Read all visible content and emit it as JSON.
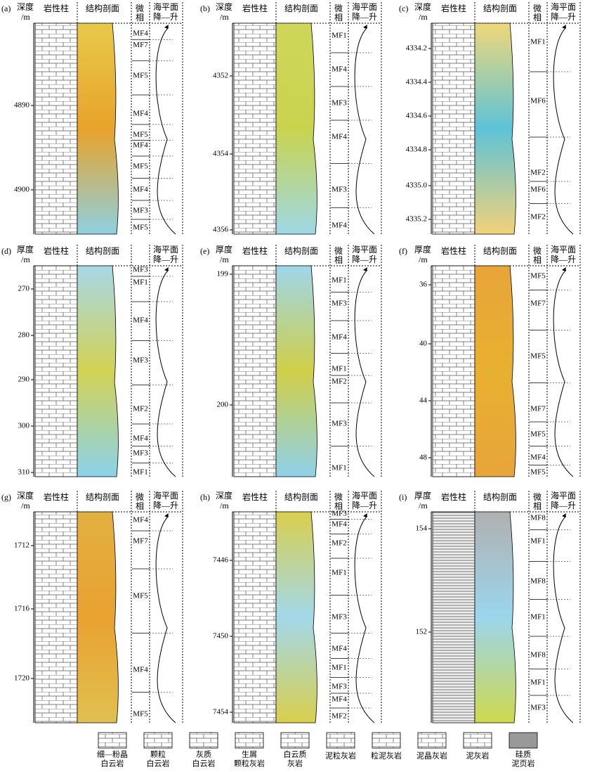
{
  "panels": [
    {
      "label": "(a)",
      "depth_header": [
        "深度",
        "/m"
      ],
      "headers": [
        "岩性柱",
        "结构剖面",
        "微相",
        "海平面",
        "降—升"
      ],
      "depth_ticks": [
        "4890",
        "4900"
      ],
      "facies": [
        "MF4",
        "MF7",
        "MF5",
        "MF4",
        "MF5",
        "MF4",
        "MF5",
        "MF4",
        "MF3",
        "MF5"
      ]
    },
    {
      "label": "(b)",
      "depth_header": [
        "深度",
        "/m"
      ],
      "headers": [
        "岩性柱",
        "结构剖面",
        "微相",
        "海平面",
        "降—升"
      ],
      "depth_ticks": [
        "4352",
        "4354",
        "4356"
      ],
      "facies": [
        "MF1",
        "MF4",
        "MF3",
        "MF4",
        "MF3",
        "MF4"
      ]
    },
    {
      "label": "(c)",
      "depth_header": [
        "深度",
        "/m"
      ],
      "headers": [
        "岩性柱",
        "结构剖面",
        "微相",
        "海平面",
        "降—升"
      ],
      "depth_ticks": [
        "4334.2",
        "4334.4",
        "4334.6",
        "4334.8",
        "4335.0",
        "4335.2"
      ],
      "facies": [
        "MF1",
        "MF6",
        "MF2",
        "MF6",
        "MF2"
      ]
    },
    {
      "label": "(d)",
      "depth_header": [
        "厚度",
        "/m"
      ],
      "headers": [
        "岩性柱",
        "结构剖面",
        "海平面",
        "降—升"
      ],
      "depth_ticks": [
        "270",
        "280",
        "290",
        "300",
        "310"
      ],
      "facies": [
        "MF3",
        "MF1",
        "MF4",
        "MF3",
        "MF2",
        "MF4",
        "MF3",
        "MF1"
      ]
    },
    {
      "label": "(e)",
      "depth_header": [
        "厚度",
        "/m"
      ],
      "headers": [
        "岩性柱",
        "结构剖面",
        "微相",
        "海平面",
        "降—升"
      ],
      "depth_ticks": [
        "199",
        "200"
      ],
      "facies": [
        "MF1",
        "MF3",
        "MF4",
        "MF1",
        "MF2",
        "MF3",
        "MF1"
      ]
    },
    {
      "label": "(f)",
      "depth_header": [
        "厚度",
        "/m"
      ],
      "headers": [
        "岩性柱",
        "结构剖面",
        "微相",
        "海平面",
        "降—升"
      ],
      "depth_ticks": [
        "36",
        "40",
        "44",
        "48"
      ],
      "facies": [
        "MF5",
        "MF7",
        "MF5",
        "MF7",
        "MF5",
        "MF4",
        "MF5"
      ]
    },
    {
      "label": "(g)",
      "depth_header": [
        "深度",
        "/m"
      ],
      "headers": [
        "岩性柱",
        "结构剖面",
        "微相",
        "海平面",
        "降—升"
      ],
      "depth_ticks": [
        "1712",
        "1716",
        "1720"
      ],
      "facies": [
        "MF4",
        "MF7",
        "MF5",
        "MF4",
        "MF5"
      ]
    },
    {
      "label": "(h)",
      "depth_header": [
        "深度",
        "/m"
      ],
      "headers": [
        "岩性柱",
        "结构剖面",
        "微相",
        "海平面",
        "降—升"
      ],
      "depth_ticks": [
        "7446",
        "7450",
        "7454"
      ],
      "facies": [
        "MF3",
        "MF4",
        "MF2",
        "MF1",
        "MF3",
        "MF4",
        "MF1",
        "MF3",
        "MF4",
        "MF2"
      ]
    },
    {
      "label": "(i)",
      "depth_header": [
        "厚度",
        "/m"
      ],
      "headers": [
        "岩性柱",
        "结构剖面",
        "微相",
        "海平面",
        "降—升"
      ],
      "depth_ticks": [
        "154",
        "152"
      ],
      "facies": [
        "MF8",
        "MF1",
        "MF8",
        "MF1",
        "MF8",
        "MF1",
        "MF3"
      ]
    }
  ],
  "legend": [
    [
      "细—粉晶",
      "白云岩"
    ],
    [
      "颗粒",
      "白云岩"
    ],
    [
      "灰质",
      "白云岩"
    ],
    [
      "生屑",
      "颗粒灰岩"
    ],
    [
      "白云质",
      "灰岩"
    ],
    [
      "泥粒灰岩"
    ],
    [
      "粒泥灰岩"
    ],
    [
      "泥晶灰岩"
    ],
    [
      "泥灰岩"
    ],
    [
      "硅质",
      "泥页岩"
    ]
  ]
}
